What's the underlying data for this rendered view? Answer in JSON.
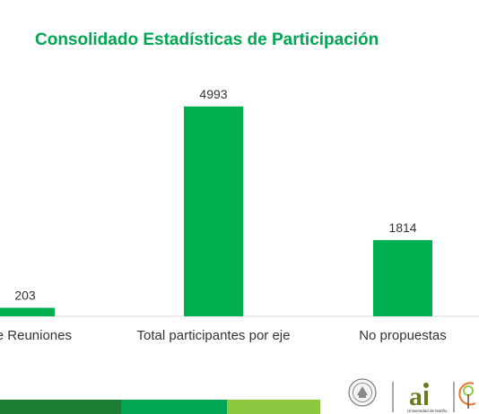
{
  "title": "Consolidado Estadísticas de Participación",
  "colors": {
    "title": "#00a651",
    "bar": "#00b050",
    "strip_dark": "#1d7d33",
    "strip_mid": "#00a651",
    "strip_light": "#8dc63f"
  },
  "chart_data": {
    "type": "bar",
    "title": "Consolidado Estadísticas de Participación",
    "categories": [
      "de Reuniones",
      "Total participantes por eje",
      "No propuestas"
    ],
    "values": [
      203,
      4993,
      1814
    ],
    "data_labels": [
      "203",
      "4993",
      "1814"
    ],
    "ylim": [
      0,
      5500
    ],
    "grid": false,
    "legend": "none"
  },
  "logos": {
    "university_name": "Universidad de Nariño",
    "brand_text": "ai"
  }
}
